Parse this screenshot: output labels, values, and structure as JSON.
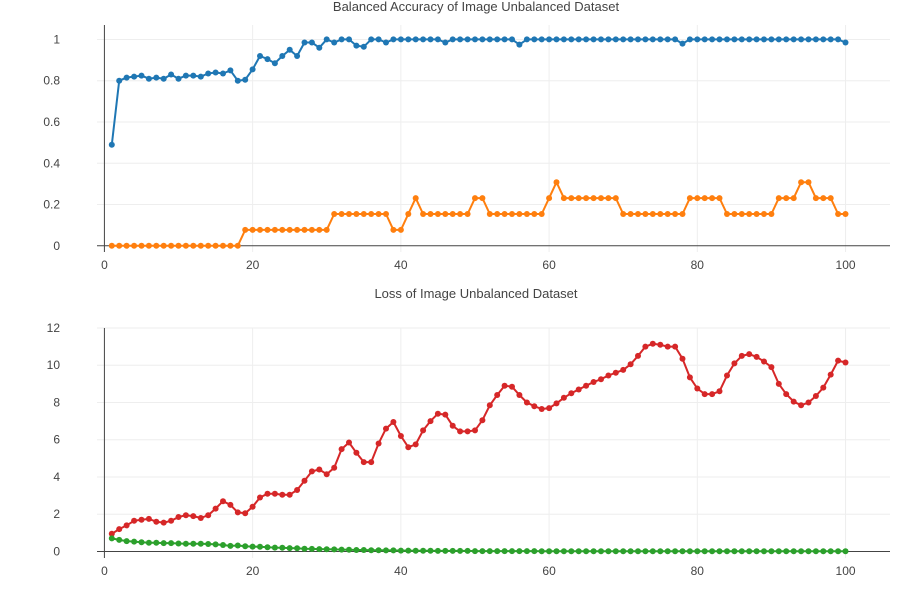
{
  "chart_data": [
    {
      "type": "line",
      "title": "Balanced Accuracy of Image Unbalanced Dataset",
      "xlabel": "",
      "ylabel": "",
      "xlim": [
        -1,
        106
      ],
      "ylim": [
        -0.03,
        1.07
      ],
      "xticks": [
        0,
        20,
        40,
        60,
        80,
        100
      ],
      "yticks": [
        0,
        0.2,
        0.4,
        0.6,
        0.8,
        1
      ],
      "ytick_labels": [
        "0",
        "0.2",
        "0.4",
        "0.6",
        "0.8",
        "1"
      ],
      "grid": true,
      "series": [
        {
          "color": "#1f77b4",
          "x": [
            1,
            2,
            3,
            4,
            5,
            6,
            7,
            8,
            9,
            10,
            11,
            12,
            13,
            14,
            15,
            16,
            17,
            18,
            19,
            20,
            21,
            22,
            23,
            24,
            25,
            26,
            27,
            28,
            29,
            30,
            31,
            32,
            33,
            34,
            35,
            36,
            37,
            38,
            39,
            40,
            41,
            42,
            43,
            44,
            45,
            46,
            47,
            48,
            49,
            50,
            51,
            52,
            53,
            54,
            55,
            56,
            57,
            58,
            59,
            60,
            61,
            62,
            63,
            64,
            65,
            66,
            67,
            68,
            69,
            70,
            71,
            72,
            73,
            74,
            75,
            76,
            77,
            78,
            79,
            80,
            81,
            82,
            83,
            84,
            85,
            86,
            87,
            88,
            89,
            90,
            91,
            92,
            93,
            94,
            95,
            96,
            97,
            98,
            99,
            100
          ],
          "y": [
            0.49,
            0.8,
            0.815,
            0.82,
            0.825,
            0.81,
            0.815,
            0.81,
            0.83,
            0.81,
            0.825,
            0.825,
            0.82,
            0.835,
            0.84,
            0.835,
            0.85,
            0.8,
            0.805,
            0.855,
            0.92,
            0.905,
            0.885,
            0.92,
            0.95,
            0.92,
            0.985,
            0.985,
            0.96,
            1.0,
            0.985,
            1.0,
            1.0,
            0.97,
            0.965,
            1.0,
            1.0,
            0.985,
            1.0,
            1.0,
            1.0,
            1.0,
            1.0,
            1.0,
            1.0,
            0.985,
            1.0,
            1.0,
            1.0,
            1.0,
            1.0,
            1.0,
            1.0,
            1.0,
            1.0,
            0.975,
            1.0,
            1.0,
            1.0,
            1.0,
            1.0,
            1.0,
            1.0,
            1.0,
            1.0,
            1.0,
            1.0,
            1.0,
            1.0,
            1.0,
            1.0,
            1.0,
            1.0,
            1.0,
            1.0,
            1.0,
            1.0,
            0.98,
            1.0,
            1.0,
            1.0,
            1.0,
            1.0,
            1.0,
            1.0,
            1.0,
            1.0,
            1.0,
            1.0,
            1.0,
            1.0,
            1.0,
            1.0,
            1.0,
            1.0,
            1.0,
            1.0,
            1.0,
            1.0,
            0.985
          ]
        },
        {
          "color": "#ff7f0e",
          "x": [
            1,
            2,
            3,
            4,
            5,
            6,
            7,
            8,
            9,
            10,
            11,
            12,
            13,
            14,
            15,
            16,
            17,
            18,
            19,
            20,
            21,
            22,
            23,
            24,
            25,
            26,
            27,
            28,
            29,
            30,
            31,
            32,
            33,
            34,
            35,
            36,
            37,
            38,
            39,
            40,
            41,
            42,
            43,
            44,
            45,
            46,
            47,
            48,
            49,
            50,
            51,
            52,
            53,
            54,
            55,
            56,
            57,
            58,
            59,
            60,
            61,
            62,
            63,
            64,
            65,
            66,
            67,
            68,
            69,
            70,
            71,
            72,
            73,
            74,
            75,
            76,
            77,
            78,
            79,
            80,
            81,
            82,
            83,
            84,
            85,
            86,
            87,
            88,
            89,
            90,
            91,
            92,
            93,
            94,
            95,
            96,
            97,
            98,
            99,
            100
          ],
          "y": [
            0,
            0,
            0,
            0,
            0,
            0,
            0,
            0,
            0,
            0,
            0,
            0,
            0,
            0,
            0,
            0,
            0,
            0,
            0.077,
            0.077,
            0.077,
            0.077,
            0.077,
            0.077,
            0.077,
            0.077,
            0.077,
            0.077,
            0.077,
            0.077,
            0.154,
            0.154,
            0.154,
            0.154,
            0.154,
            0.154,
            0.154,
            0.154,
            0.077,
            0.077,
            0.154,
            0.231,
            0.154,
            0.154,
            0.154,
            0.154,
            0.154,
            0.154,
            0.154,
            0.231,
            0.231,
            0.154,
            0.154,
            0.154,
            0.154,
            0.154,
            0.154,
            0.154,
            0.154,
            0.231,
            0.308,
            0.231,
            0.231,
            0.231,
            0.231,
            0.231,
            0.231,
            0.231,
            0.231,
            0.154,
            0.154,
            0.154,
            0.154,
            0.154,
            0.154,
            0.154,
            0.154,
            0.154,
            0.231,
            0.231,
            0.231,
            0.231,
            0.231,
            0.154,
            0.154,
            0.154,
            0.154,
            0.154,
            0.154,
            0.154,
            0.231,
            0.231,
            0.231,
            0.308,
            0.308,
            0.231,
            0.231,
            0.231,
            0.154,
            0.154
          ]
        }
      ]
    },
    {
      "type": "line",
      "title": "Loss of Image Unbalanced Dataset",
      "xlabel": "",
      "ylabel": "",
      "xlim": [
        -1,
        106
      ],
      "ylim": [
        -0.35,
        12.0
      ],
      "xticks": [
        0,
        20,
        40,
        60,
        80,
        100
      ],
      "yticks": [
        0,
        2,
        4,
        6,
        8,
        10,
        12
      ],
      "ytick_labels": [
        "0",
        "2",
        "4",
        "6",
        "8",
        "10",
        "12"
      ],
      "grid": true,
      "series": [
        {
          "color": "#d62728",
          "x": [
            1,
            2,
            3,
            4,
            5,
            6,
            7,
            8,
            9,
            10,
            11,
            12,
            13,
            14,
            15,
            16,
            17,
            18,
            19,
            20,
            21,
            22,
            23,
            24,
            25,
            26,
            27,
            28,
            29,
            30,
            31,
            32,
            33,
            34,
            35,
            36,
            37,
            38,
            39,
            40,
            41,
            42,
            43,
            44,
            45,
            46,
            47,
            48,
            49,
            50,
            51,
            52,
            53,
            54,
            55,
            56,
            57,
            58,
            59,
            60,
            61,
            62,
            63,
            64,
            65,
            66,
            67,
            68,
            69,
            70,
            71,
            72,
            73,
            74,
            75,
            76,
            77,
            78,
            79,
            80,
            81,
            82,
            83,
            84,
            85,
            86,
            87,
            88,
            89,
            90,
            91,
            92,
            93,
            94,
            95,
            96,
            97,
            98,
            99,
            100
          ],
          "y": [
            0.95,
            1.2,
            1.4,
            1.65,
            1.7,
            1.75,
            1.6,
            1.55,
            1.65,
            1.85,
            1.95,
            1.9,
            1.8,
            1.95,
            2.3,
            2.7,
            2.5,
            2.1,
            2.05,
            2.4,
            2.9,
            3.1,
            3.1,
            3.05,
            3.05,
            3.3,
            3.8,
            4.3,
            4.4,
            4.15,
            4.5,
            5.5,
            5.85,
            5.3,
            4.8,
            4.8,
            5.8,
            6.6,
            6.95,
            6.2,
            5.6,
            5.75,
            6.5,
            7.0,
            7.4,
            7.35,
            6.75,
            6.45,
            6.45,
            6.5,
            7.05,
            7.85,
            8.4,
            8.9,
            8.85,
            8.4,
            8.0,
            7.8,
            7.65,
            7.7,
            7.95,
            8.25,
            8.5,
            8.7,
            8.9,
            9.1,
            9.25,
            9.45,
            9.6,
            9.75,
            10.05,
            10.5,
            11.0,
            11.15,
            11.1,
            11.0,
            11.0,
            10.35,
            9.35,
            8.75,
            8.45,
            8.45,
            8.6,
            9.45,
            10.1,
            10.5,
            10.6,
            10.45,
            10.2,
            9.9,
            9.0,
            8.45,
            8.05,
            7.85,
            8.0,
            8.35,
            8.8,
            9.5,
            10.25,
            10.15
          ]
        },
        {
          "color": "#2ca02c",
          "x": [
            1,
            2,
            3,
            4,
            5,
            6,
            7,
            8,
            9,
            10,
            11,
            12,
            13,
            14,
            15,
            16,
            17,
            18,
            19,
            20,
            21,
            22,
            23,
            24,
            25,
            26,
            27,
            28,
            29,
            30,
            31,
            32,
            33,
            34,
            35,
            36,
            37,
            38,
            39,
            40,
            41,
            42,
            43,
            44,
            45,
            46,
            47,
            48,
            49,
            50,
            51,
            52,
            53,
            54,
            55,
            56,
            57,
            58,
            59,
            60,
            61,
            62,
            63,
            64,
            65,
            66,
            67,
            68,
            69,
            70,
            71,
            72,
            73,
            74,
            75,
            76,
            77,
            78,
            79,
            80,
            81,
            82,
            83,
            84,
            85,
            86,
            87,
            88,
            89,
            90,
            91,
            92,
            93,
            94,
            95,
            96,
            97,
            98,
            99,
            100
          ],
          "y": [
            0.7,
            0.62,
            0.56,
            0.53,
            0.5,
            0.47,
            0.47,
            0.45,
            0.45,
            0.43,
            0.42,
            0.41,
            0.41,
            0.4,
            0.38,
            0.35,
            0.3,
            0.32,
            0.28,
            0.26,
            0.25,
            0.23,
            0.21,
            0.2,
            0.18,
            0.17,
            0.15,
            0.14,
            0.13,
            0.12,
            0.11,
            0.1,
            0.09,
            0.08,
            0.08,
            0.07,
            0.07,
            0.06,
            0.06,
            0.05,
            0.05,
            0.04,
            0.04,
            0.04,
            0.03,
            0.03,
            0.03,
            0.03,
            0.03,
            0.02,
            0.02,
            0.02,
            0.02,
            0.02,
            0.02,
            0.02,
            0.02,
            0.02,
            0.01,
            0.01,
            0.01,
            0.01,
            0.01,
            0.01,
            0.01,
            0.01,
            0.01,
            0.01,
            0.01,
            0.01,
            0.01,
            0.01,
            0.01,
            0.01,
            0.01,
            0.01,
            0.01,
            0.01,
            0.01,
            0.01,
            0.01,
            0.01,
            0.01,
            0.01,
            0.01,
            0.01,
            0.01,
            0.01,
            0.01,
            0.01,
            0.01,
            0.01,
            0.01,
            0.01,
            0.01,
            0.01,
            0.01,
            0.01,
            0.01,
            0.01
          ]
        }
      ]
    }
  ]
}
